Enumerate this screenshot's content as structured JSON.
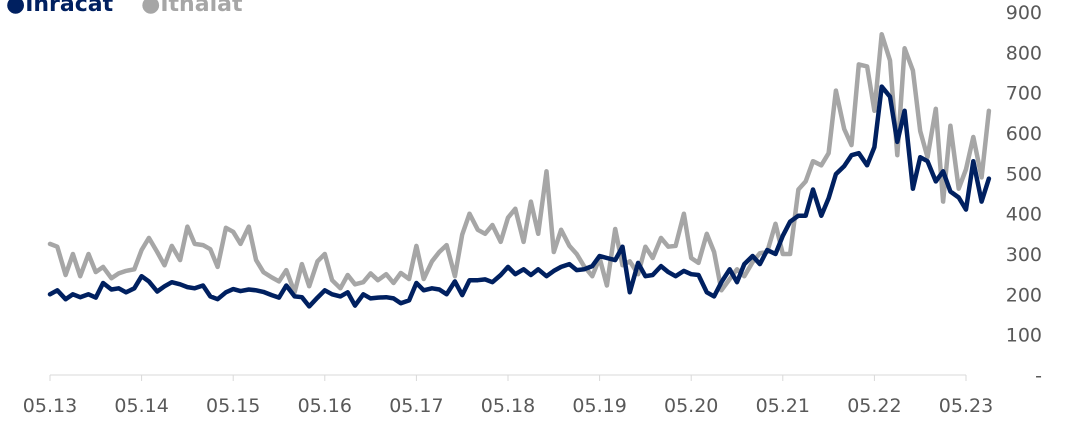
{
  "chart_data": {
    "type": "line",
    "title": "",
    "xlabel": "",
    "ylabel": "",
    "ylim": [
      0,
      900
    ],
    "y_ticks": [
      0,
      100,
      200,
      300,
      400,
      500,
      600,
      700,
      800,
      900
    ],
    "y_tick_labels": [
      "-",
      "100",
      "200",
      "300",
      "400",
      "500",
      "600",
      "700",
      "800",
      "900"
    ],
    "x_range": [
      2013,
      2023
    ],
    "x_ticks": [
      2013,
      2014,
      2015,
      2016,
      2017,
      2018,
      2019,
      2020,
      2021,
      2022,
      2023
    ],
    "x_tick_labels": [
      "05.13",
      "05.14",
      "05.15",
      "05.16",
      "05.17",
      "05.18",
      "05.19",
      "05.20",
      "05.21",
      "05.22",
      "05.23"
    ],
    "grid": false,
    "legend_position": "top-left",
    "legend": [
      {
        "marker": "●",
        "label": "İhracat",
        "color": "#002060"
      },
      {
        "marker": "●",
        "label": "İthalat",
        "color": "#A6A6A6"
      }
    ],
    "series": [
      {
        "name": "İhracat",
        "color": "#002060",
        "points": [
          [
            2013.0,
            200
          ],
          [
            2013.08,
            210
          ],
          [
            2013.17,
            188
          ],
          [
            2013.25,
            200
          ],
          [
            2013.33,
            193
          ],
          [
            2013.42,
            200
          ],
          [
            2013.5,
            192
          ],
          [
            2013.58,
            228
          ],
          [
            2013.67,
            212
          ],
          [
            2013.75,
            215
          ],
          [
            2013.83,
            205
          ],
          [
            2013.92,
            215
          ],
          [
            2014.0,
            245
          ],
          [
            2014.08,
            232
          ],
          [
            2014.17,
            207
          ],
          [
            2014.25,
            220
          ],
          [
            2014.33,
            230
          ],
          [
            2014.42,
            225
          ],
          [
            2014.5,
            218
          ],
          [
            2014.58,
            215
          ],
          [
            2014.67,
            222
          ],
          [
            2014.75,
            195
          ],
          [
            2014.83,
            188
          ],
          [
            2014.92,
            205
          ],
          [
            2015.0,
            213
          ],
          [
            2015.08,
            208
          ],
          [
            2015.17,
            212
          ],
          [
            2015.25,
            210
          ],
          [
            2015.33,
            206
          ],
          [
            2015.42,
            198
          ],
          [
            2015.5,
            192
          ],
          [
            2015.58,
            222
          ],
          [
            2015.67,
            195
          ],
          [
            2015.75,
            193
          ],
          [
            2015.83,
            170
          ],
          [
            2015.92,
            192
          ],
          [
            2016.0,
            210
          ],
          [
            2016.08,
            200
          ],
          [
            2016.17,
            195
          ],
          [
            2016.25,
            205
          ],
          [
            2016.33,
            172
          ],
          [
            2016.42,
            200
          ],
          [
            2016.5,
            190
          ],
          [
            2016.58,
            192
          ],
          [
            2016.67,
            193
          ],
          [
            2016.75,
            190
          ],
          [
            2016.83,
            178
          ],
          [
            2016.92,
            185
          ],
          [
            2017.0,
            228
          ],
          [
            2017.08,
            210
          ],
          [
            2017.17,
            215
          ],
          [
            2017.25,
            212
          ],
          [
            2017.33,
            200
          ],
          [
            2017.42,
            232
          ],
          [
            2017.5,
            198
          ],
          [
            2017.58,
            235
          ],
          [
            2017.67,
            235
          ],
          [
            2017.75,
            237
          ],
          [
            2017.83,
            230
          ],
          [
            2017.92,
            248
          ],
          [
            2018.0,
            268
          ],
          [
            2018.08,
            250
          ],
          [
            2018.17,
            262
          ],
          [
            2018.25,
            248
          ],
          [
            2018.33,
            262
          ],
          [
            2018.42,
            245
          ],
          [
            2018.5,
            258
          ],
          [
            2018.58,
            268
          ],
          [
            2018.67,
            275
          ],
          [
            2018.75,
            260
          ],
          [
            2018.83,
            262
          ],
          [
            2018.92,
            270
          ],
          [
            2019.0,
            295
          ],
          [
            2019.08,
            290
          ],
          [
            2019.17,
            285
          ],
          [
            2019.25,
            318
          ],
          [
            2019.33,
            205
          ],
          [
            2019.42,
            278
          ],
          [
            2019.5,
            245
          ],
          [
            2019.58,
            248
          ],
          [
            2019.67,
            270
          ],
          [
            2019.75,
            255
          ],
          [
            2019.83,
            245
          ],
          [
            2019.92,
            258
          ],
          [
            2020.0,
            250
          ],
          [
            2020.08,
            248
          ],
          [
            2020.17,
            205
          ],
          [
            2020.25,
            195
          ],
          [
            2020.33,
            230
          ],
          [
            2020.42,
            262
          ],
          [
            2020.5,
            230
          ],
          [
            2020.58,
            275
          ],
          [
            2020.67,
            295
          ],
          [
            2020.75,
            275
          ],
          [
            2020.83,
            310
          ],
          [
            2020.92,
            300
          ],
          [
            2021.0,
            345
          ],
          [
            2021.08,
            380
          ],
          [
            2021.17,
            395
          ],
          [
            2021.25,
            395
          ],
          [
            2021.33,
            460
          ],
          [
            2021.42,
            395
          ],
          [
            2021.5,
            438
          ],
          [
            2021.58,
            498
          ],
          [
            2021.67,
            518
          ],
          [
            2021.75,
            545
          ],
          [
            2021.83,
            550
          ],
          [
            2021.92,
            520
          ],
          [
            2022.0,
            565
          ],
          [
            2022.08,
            715
          ],
          [
            2022.17,
            690
          ],
          [
            2022.25,
            578
          ],
          [
            2022.33,
            655
          ],
          [
            2022.42,
            462
          ],
          [
            2022.5,
            540
          ],
          [
            2022.58,
            530
          ],
          [
            2022.67,
            480
          ],
          [
            2022.75,
            505
          ],
          [
            2022.83,
            455
          ],
          [
            2022.92,
            440
          ],
          [
            2023.0,
            410
          ],
          [
            2023.08,
            530
          ],
          [
            2023.17,
            430
          ],
          [
            2023.25,
            487
          ]
        ]
      },
      {
        "name": "İthalat",
        "color": "#A6A6A6",
        "points": [
          [
            2013.0,
            325
          ],
          [
            2013.08,
            318
          ],
          [
            2013.17,
            248
          ],
          [
            2013.25,
            300
          ],
          [
            2013.33,
            245
          ],
          [
            2013.42,
            300
          ],
          [
            2013.5,
            255
          ],
          [
            2013.58,
            268
          ],
          [
            2013.67,
            240
          ],
          [
            2013.75,
            252
          ],
          [
            2013.83,
            258
          ],
          [
            2013.92,
            262
          ],
          [
            2014.0,
            310
          ],
          [
            2014.08,
            340
          ],
          [
            2014.17,
            305
          ],
          [
            2014.25,
            272
          ],
          [
            2014.33,
            320
          ],
          [
            2014.42,
            285
          ],
          [
            2014.5,
            368
          ],
          [
            2014.58,
            325
          ],
          [
            2014.67,
            322
          ],
          [
            2014.75,
            312
          ],
          [
            2014.83,
            268
          ],
          [
            2014.92,
            365
          ],
          [
            2015.0,
            355
          ],
          [
            2015.08,
            325
          ],
          [
            2015.17,
            368
          ],
          [
            2015.25,
            285
          ],
          [
            2015.33,
            255
          ],
          [
            2015.42,
            242
          ],
          [
            2015.5,
            232
          ],
          [
            2015.58,
            260
          ],
          [
            2015.67,
            205
          ],
          [
            2015.75,
            275
          ],
          [
            2015.83,
            220
          ],
          [
            2015.92,
            282
          ],
          [
            2016.0,
            300
          ],
          [
            2016.08,
            235
          ],
          [
            2016.17,
            215
          ],
          [
            2016.25,
            248
          ],
          [
            2016.33,
            225
          ],
          [
            2016.42,
            230
          ],
          [
            2016.5,
            252
          ],
          [
            2016.58,
            235
          ],
          [
            2016.67,
            250
          ],
          [
            2016.75,
            228
          ],
          [
            2016.83,
            253
          ],
          [
            2016.92,
            238
          ],
          [
            2017.0,
            320
          ],
          [
            2017.08,
            238
          ],
          [
            2017.17,
            282
          ],
          [
            2017.25,
            305
          ],
          [
            2017.33,
            322
          ],
          [
            2017.42,
            245
          ],
          [
            2017.5,
            348
          ],
          [
            2017.58,
            400
          ],
          [
            2017.67,
            360
          ],
          [
            2017.75,
            350
          ],
          [
            2017.83,
            372
          ],
          [
            2017.92,
            330
          ],
          [
            2018.0,
            390
          ],
          [
            2018.08,
            412
          ],
          [
            2018.17,
            330
          ],
          [
            2018.25,
            430
          ],
          [
            2018.33,
            350
          ],
          [
            2018.42,
            505
          ],
          [
            2018.5,
            305
          ],
          [
            2018.58,
            360
          ],
          [
            2018.67,
            320
          ],
          [
            2018.75,
            300
          ],
          [
            2018.83,
            270
          ],
          [
            2018.92,
            245
          ],
          [
            2019.0,
            290
          ],
          [
            2019.08,
            222
          ],
          [
            2019.17,
            362
          ],
          [
            2019.25,
            272
          ],
          [
            2019.33,
            282
          ],
          [
            2019.42,
            250
          ],
          [
            2019.5,
            318
          ],
          [
            2019.58,
            290
          ],
          [
            2019.67,
            340
          ],
          [
            2019.75,
            318
          ],
          [
            2019.83,
            320
          ],
          [
            2019.92,
            400
          ],
          [
            2020.0,
            290
          ],
          [
            2020.08,
            278
          ],
          [
            2020.17,
            350
          ],
          [
            2020.25,
            305
          ],
          [
            2020.33,
            210
          ],
          [
            2020.42,
            238
          ],
          [
            2020.5,
            262
          ],
          [
            2020.58,
            245
          ],
          [
            2020.67,
            280
          ],
          [
            2020.75,
            302
          ],
          [
            2020.83,
            305
          ],
          [
            2020.92,
            375
          ],
          [
            2021.0,
            300
          ],
          [
            2021.08,
            300
          ],
          [
            2021.17,
            460
          ],
          [
            2021.25,
            480
          ],
          [
            2021.33,
            530
          ],
          [
            2021.42,
            520
          ],
          [
            2021.5,
            550
          ],
          [
            2021.58,
            705
          ],
          [
            2021.67,
            610
          ],
          [
            2021.75,
            570
          ],
          [
            2021.83,
            770
          ],
          [
            2021.92,
            765
          ],
          [
            2022.0,
            655
          ],
          [
            2022.08,
            845
          ],
          [
            2022.17,
            780
          ],
          [
            2022.25,
            545
          ],
          [
            2022.33,
            810
          ],
          [
            2022.42,
            755
          ],
          [
            2022.5,
            605
          ],
          [
            2022.58,
            540
          ],
          [
            2022.67,
            660
          ],
          [
            2022.75,
            430
          ],
          [
            2022.83,
            618
          ],
          [
            2022.92,
            462
          ],
          [
            2023.0,
            510
          ],
          [
            2023.08,
            590
          ],
          [
            2023.17,
            490
          ],
          [
            2023.25,
            655
          ]
        ]
      }
    ]
  }
}
